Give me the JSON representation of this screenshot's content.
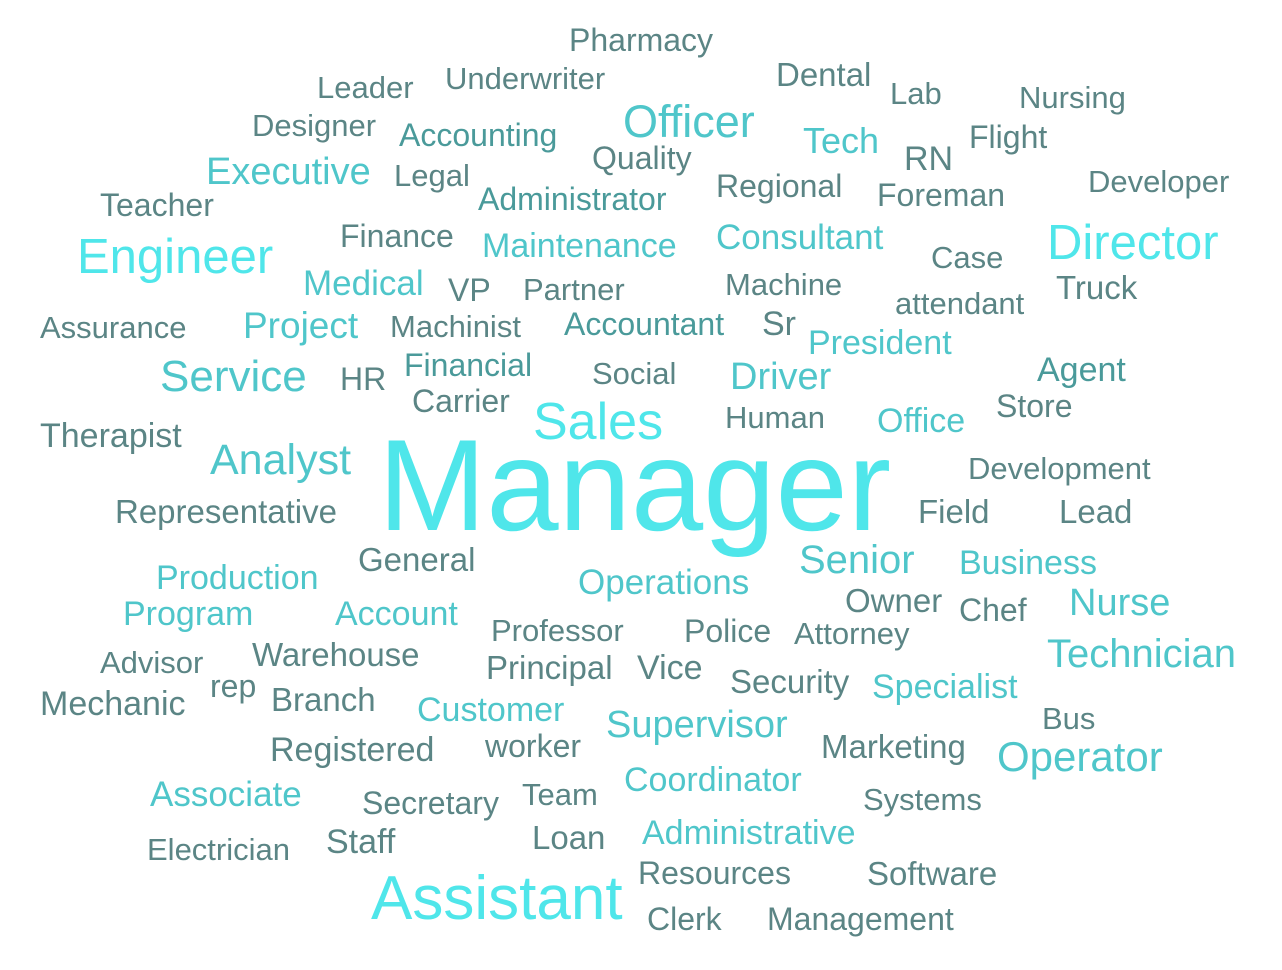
{
  "words": [
    {
      "text": "Manager",
      "tone": "t1"
    },
    {
      "text": "Assistant",
      "tone": "t1"
    },
    {
      "text": "Engineer",
      "tone": "t1"
    },
    {
      "text": "Director",
      "tone": "t1"
    },
    {
      "text": "Sales",
      "tone": "t1"
    },
    {
      "text": "Officer",
      "tone": "t2"
    },
    {
      "text": "Service",
      "tone": "t2"
    },
    {
      "text": "Analyst",
      "tone": "t2"
    },
    {
      "text": "Senior",
      "tone": "t2"
    },
    {
      "text": "Technician",
      "tone": "t2"
    },
    {
      "text": "Operator",
      "tone": "t2"
    },
    {
      "text": "Supervisor",
      "tone": "t2"
    },
    {
      "text": "Executive",
      "tone": "t2"
    },
    {
      "text": "Project",
      "tone": "t2"
    },
    {
      "text": "Driver",
      "tone": "t2"
    },
    {
      "text": "Nurse",
      "tone": "t2"
    },
    {
      "text": "Tech",
      "tone": "t2"
    },
    {
      "text": "Consultant",
      "tone": "t2"
    },
    {
      "text": "Maintenance",
      "tone": "t2"
    },
    {
      "text": "Medical",
      "tone": "t2"
    },
    {
      "text": "Operations",
      "tone": "t2"
    },
    {
      "text": "Production",
      "tone": "t2"
    },
    {
      "text": "Program",
      "tone": "t2"
    },
    {
      "text": "Account",
      "tone": "t2"
    },
    {
      "text": "Customer",
      "tone": "t2"
    },
    {
      "text": "Specialist",
      "tone": "t2"
    },
    {
      "text": "Coordinator",
      "tone": "t2"
    },
    {
      "text": "Administrative",
      "tone": "t2"
    },
    {
      "text": "Associate",
      "tone": "t2"
    },
    {
      "text": "Business",
      "tone": "t2"
    },
    {
      "text": "President",
      "tone": "t2"
    },
    {
      "text": "Office",
      "tone": "t2"
    },
    {
      "text": "Agent",
      "tone": "t3"
    },
    {
      "text": "Financial",
      "tone": "t3"
    },
    {
      "text": "Accountant",
      "tone": "t3"
    },
    {
      "text": "Administrator",
      "tone": "t3"
    },
    {
      "text": "Accounting",
      "tone": "t3"
    },
    {
      "text": "Pharmacy",
      "tone": "t4"
    },
    {
      "text": "Underwriter",
      "tone": "t4"
    },
    {
      "text": "Leader",
      "tone": "t4"
    },
    {
      "text": "Dental",
      "tone": "t4"
    },
    {
      "text": "Lab",
      "tone": "t4"
    },
    {
      "text": "Nursing",
      "tone": "t4"
    },
    {
      "text": "Designer",
      "tone": "t4"
    },
    {
      "text": "Flight",
      "tone": "t4"
    },
    {
      "text": "Quality",
      "tone": "t4"
    },
    {
      "text": "RN",
      "tone": "t4"
    },
    {
      "text": "Legal",
      "tone": "t4"
    },
    {
      "text": "Regional",
      "tone": "t4"
    },
    {
      "text": "Developer",
      "tone": "t4"
    },
    {
      "text": "Teacher",
      "tone": "t4"
    },
    {
      "text": "Foreman",
      "tone": "t4"
    },
    {
      "text": "Finance",
      "tone": "t4"
    },
    {
      "text": "Case",
      "tone": "t4"
    },
    {
      "text": "Machine",
      "tone": "t4"
    },
    {
      "text": "Truck",
      "tone": "t4"
    },
    {
      "text": "VP",
      "tone": "t4"
    },
    {
      "text": "Partner",
      "tone": "t4"
    },
    {
      "text": "attendant",
      "tone": "t4"
    },
    {
      "text": "Assurance",
      "tone": "t4"
    },
    {
      "text": "Machinist",
      "tone": "t4"
    },
    {
      "text": "Sr",
      "tone": "t4"
    },
    {
      "text": "HR",
      "tone": "t4"
    },
    {
      "text": "Social",
      "tone": "t4"
    },
    {
      "text": "Carrier",
      "tone": "t4"
    },
    {
      "text": "Store",
      "tone": "t4"
    },
    {
      "text": "Therapist",
      "tone": "t4"
    },
    {
      "text": "Human",
      "tone": "t4"
    },
    {
      "text": "Development",
      "tone": "t4"
    },
    {
      "text": "Representative",
      "tone": "t4"
    },
    {
      "text": "Field",
      "tone": "t4"
    },
    {
      "text": "Lead",
      "tone": "t4"
    },
    {
      "text": "General",
      "tone": "t4"
    },
    {
      "text": "Owner",
      "tone": "t4"
    },
    {
      "text": "Chef",
      "tone": "t4"
    },
    {
      "text": "Professor",
      "tone": "t4"
    },
    {
      "text": "Police",
      "tone": "t4"
    },
    {
      "text": "Attorney",
      "tone": "t4"
    },
    {
      "text": "Advisor",
      "tone": "t4"
    },
    {
      "text": "Warehouse",
      "tone": "t4"
    },
    {
      "text": "Principal",
      "tone": "t4"
    },
    {
      "text": "Vice",
      "tone": "t4"
    },
    {
      "text": "rep",
      "tone": "t4"
    },
    {
      "text": "Security",
      "tone": "t4"
    },
    {
      "text": "Mechanic",
      "tone": "t4"
    },
    {
      "text": "Branch",
      "tone": "t4"
    },
    {
      "text": "Bus",
      "tone": "t4"
    },
    {
      "text": "Registered",
      "tone": "t4"
    },
    {
      "text": "worker",
      "tone": "t4"
    },
    {
      "text": "Marketing",
      "tone": "t4"
    },
    {
      "text": "Team",
      "tone": "t4"
    },
    {
      "text": "Secretary",
      "tone": "t4"
    },
    {
      "text": "Systems",
      "tone": "t4"
    },
    {
      "text": "Loan",
      "tone": "t4"
    },
    {
      "text": "Electrician",
      "tone": "t4"
    },
    {
      "text": "Staff",
      "tone": "t4"
    },
    {
      "text": "Resources",
      "tone": "t4"
    },
    {
      "text": "Software",
      "tone": "t4"
    },
    {
      "text": "Clerk",
      "tone": "t4"
    },
    {
      "text": "Management",
      "tone": "t4"
    }
  ]
}
